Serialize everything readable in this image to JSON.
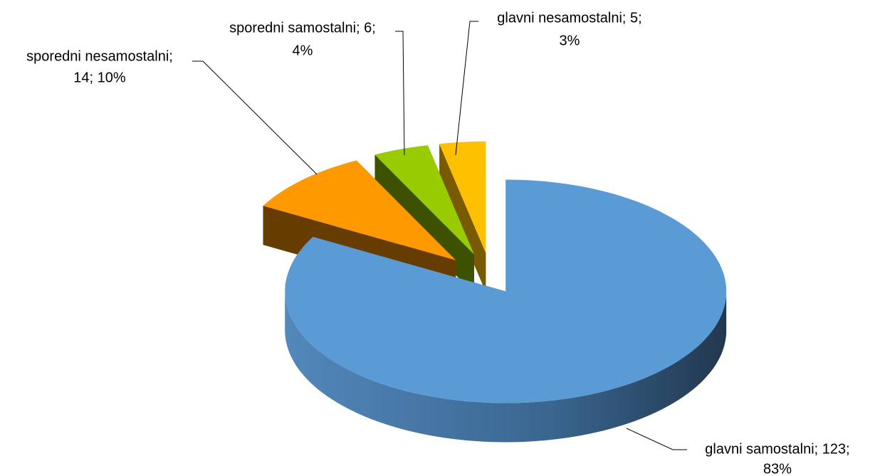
{
  "chart_data": {
    "type": "pie",
    "categories": [
      "glavni samostalni",
      "sporedni nesamostalni",
      "sporedni samostalni",
      "glavni nesamostalni"
    ],
    "values": [
      123,
      14,
      6,
      5
    ],
    "value_labels": [
      [
        "glavni samostalni; 123;",
        "83%"
      ],
      [
        "sporedni nesamostalni;",
        "14; 10%"
      ],
      [
        "sporedni samostalni; 6;",
        "4%"
      ],
      [
        "glavni nesamostalni; 5;",
        "3%"
      ]
    ],
    "colors": [
      "#5b9bd5",
      "#ff9900",
      "#99cc00",
      "#ffc000"
    ],
    "side_colors": [
      "#3a6a96",
      "#663c00",
      "#3d5200",
      "#7a5a00"
    ]
  }
}
